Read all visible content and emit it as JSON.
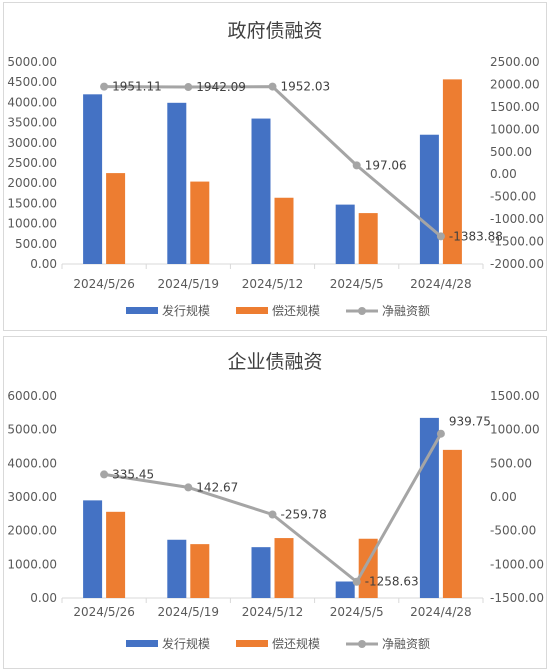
{
  "colors": {
    "issuance": "#4472C4",
    "repayment": "#ED7D31",
    "net": "#A5A5A5"
  },
  "chart_data": [
    {
      "type": "bar",
      "title": "政府债融资",
      "categories": [
        "2024/5/26",
        "2024/5/19",
        "2024/5/12",
        "2024/5/5",
        "2024/4/28"
      ],
      "series": [
        {
          "name": "发行规模",
          "type": "bar",
          "axis": "left",
          "values": [
            4200,
            3990,
            3600,
            1470,
            3200
          ]
        },
        {
          "name": "偿还规模",
          "type": "bar",
          "axis": "left",
          "values": [
            2250,
            2040,
            1640,
            1260,
            4570
          ]
        },
        {
          "name": "净融资额",
          "type": "line",
          "axis": "right",
          "values": [
            1951.11,
            1942.09,
            1952.03,
            197.06,
            -1383.88
          ],
          "labels": [
            "1951.11",
            "1942.09",
            "1952.03",
            "197.06",
            "-1383.88"
          ]
        }
      ],
      "y_left": {
        "min": 0,
        "max": 5000,
        "step": 500,
        "ticks": [
          "0.00",
          "500.00",
          "1000.00",
          "1500.00",
          "2000.00",
          "2500.00",
          "3000.00",
          "3500.00",
          "4000.00",
          "4500.00",
          "5000.00"
        ]
      },
      "y_right": {
        "min": -2000,
        "max": 2500,
        "step": 500,
        "ticks": [
          "-2000.00",
          "-1500.00",
          "-1000.00",
          "-500.00",
          "0.00",
          "500.00",
          "1000.00",
          "1500.00",
          "2000.00",
          "2500.00"
        ]
      },
      "legend": "bottom",
      "grid": false
    },
    {
      "type": "bar",
      "title": "企业债融资",
      "categories": [
        "2024/5/26",
        "2024/5/19",
        "2024/5/12",
        "2024/5/5",
        "2024/4/28"
      ],
      "series": [
        {
          "name": "发行规模",
          "type": "bar",
          "axis": "left",
          "values": [
            2900,
            1730,
            1510,
            490,
            5350
          ]
        },
        {
          "name": "偿还规模",
          "type": "bar",
          "axis": "left",
          "values": [
            2560,
            1600,
            1780,
            1760,
            4400
          ]
        },
        {
          "name": "净融资额",
          "type": "line",
          "axis": "right",
          "values": [
            335.45,
            142.67,
            -259.78,
            -1258.63,
            939.75
          ],
          "labels": [
            "335.45",
            "142.67",
            "-259.78",
            "-1258.63",
            "939.75"
          ]
        }
      ],
      "y_left": {
        "min": 0,
        "max": 6000,
        "step": 1000,
        "ticks": [
          "0.00",
          "1000.00",
          "2000.00",
          "3000.00",
          "4000.00",
          "5000.00",
          "6000.00"
        ]
      },
      "y_right": {
        "min": -1500,
        "max": 1500,
        "step": 500,
        "ticks": [
          "-1500.00",
          "-1000.00",
          "-500.00",
          "0.00",
          "500.00",
          "1000.00",
          "1500.00"
        ]
      },
      "legend": "bottom",
      "grid": false
    }
  ]
}
